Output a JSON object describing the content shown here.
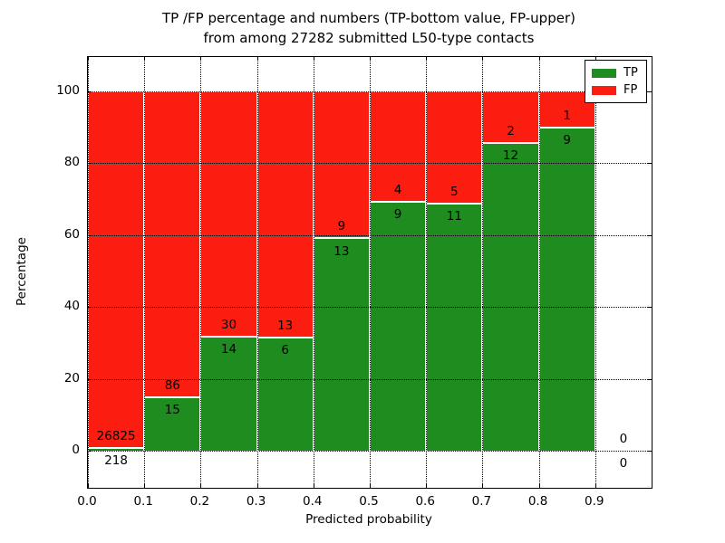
{
  "figure": {
    "title_line1": "TP /FP percentage and numbers (TP-bottom value, FP-upper)",
    "title_line2": "from among 27282 submitted L50-type contacts",
    "xlabel": "Predicted probability",
    "ylabel": "Percentage"
  },
  "legend": {
    "items": [
      {
        "label": "TP",
        "color": "#1e8c1e"
      },
      {
        "label": "FP",
        "color": "#fb1d10"
      }
    ],
    "position": "upper right"
  },
  "chart_data": {
    "type": "bar",
    "stacked": true,
    "title": "TP /FP percentage and numbers (TP-bottom value, FP-upper) from among 27282 submitted L50-type contacts",
    "total_contacts": 27282,
    "xlabel": "Predicted probability",
    "ylabel": "Percentage",
    "xlim": [
      0.0,
      1.0
    ],
    "ylim": [
      -10.3,
      109.6
    ],
    "x_ticks": [
      "0.0",
      "0.1",
      "0.2",
      "0.3",
      "0.4",
      "0.5",
      "0.6",
      "0.7",
      "0.8",
      "0.9"
    ],
    "y_ticks": [
      0,
      20,
      40,
      60,
      80,
      100
    ],
    "grid": true,
    "grid_style": "dotted",
    "legend_position": "upper right",
    "colors": {
      "tp": "#1e8c1e",
      "fp": "#fb1d10",
      "text": "#000000",
      "background": "#ffffff"
    },
    "bins": [
      {
        "x_start": 0.0,
        "x_end": 0.1,
        "tp_count": 218,
        "fp_count": 26825,
        "tp_pct": 0.81,
        "fp_pct": 99.19
      },
      {
        "x_start": 0.1,
        "x_end": 0.2,
        "tp_count": 15,
        "fp_count": 86,
        "tp_pct": 14.85,
        "fp_pct": 85.15
      },
      {
        "x_start": 0.2,
        "x_end": 0.3,
        "tp_count": 14,
        "fp_count": 30,
        "tp_pct": 31.82,
        "fp_pct": 68.18
      },
      {
        "x_start": 0.3,
        "x_end": 0.4,
        "tp_count": 6,
        "fp_count": 13,
        "tp_pct": 31.58,
        "fp_pct": 68.42
      },
      {
        "x_start": 0.4,
        "x_end": 0.5,
        "tp_count": 13,
        "fp_count": 9,
        "tp_pct": 59.09,
        "fp_pct": 40.91
      },
      {
        "x_start": 0.5,
        "x_end": 0.6,
        "tp_count": 9,
        "fp_count": 4,
        "tp_pct": 69.23,
        "fp_pct": 30.77
      },
      {
        "x_start": 0.6,
        "x_end": 0.7,
        "tp_count": 11,
        "fp_count": 5,
        "tp_pct": 68.75,
        "fp_pct": 31.25
      },
      {
        "x_start": 0.7,
        "x_end": 0.8,
        "tp_count": 12,
        "fp_count": 2,
        "tp_pct": 85.71,
        "fp_pct": 14.29
      },
      {
        "x_start": 0.8,
        "x_end": 0.9,
        "tp_count": 9,
        "fp_count": 1,
        "tp_pct": 90.0,
        "fp_pct": 10.0
      },
      {
        "x_start": 0.9,
        "x_end": 1.0,
        "tp_count": 0,
        "fp_count": 0,
        "tp_pct": 0,
        "fp_pct": 0,
        "no_bar": true
      }
    ]
  }
}
